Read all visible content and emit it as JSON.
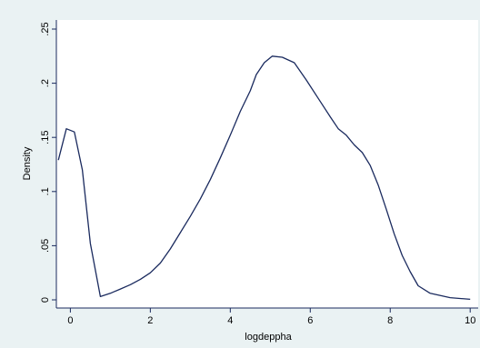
{
  "chart_data": {
    "type": "line",
    "title": "",
    "xlabel": "logdeppha",
    "ylabel": "Density",
    "xlim": [
      -0.35,
      10.2
    ],
    "ylim": [
      0,
      0.25
    ],
    "x_ticks": [
      0,
      2,
      4,
      6,
      8,
      10
    ],
    "x_tick_labels": [
      "0",
      "2",
      "4",
      "6",
      "8",
      "10"
    ],
    "y_ticks": [
      0,
      0.05,
      0.1,
      0.15,
      0.2,
      0.25
    ],
    "y_tick_labels": [
      "0",
      ".05",
      ".1",
      ".15",
      ".2",
      ".25"
    ],
    "grid": false,
    "colors": {
      "line": "#1a2a5e",
      "plot_bg": "#ffffff",
      "page_bg": "#eaf2f3"
    },
    "series": [
      {
        "x": [
          -0.3,
          -0.1,
          0.1,
          0.3,
          0.5,
          0.75,
          1.0,
          1.25,
          1.5,
          1.75,
          2.0,
          2.25,
          2.5,
          2.75,
          3.0,
          3.25,
          3.5,
          3.75,
          4.0,
          4.25,
          4.5,
          4.65,
          4.85,
          5.05,
          5.3,
          5.6,
          5.9,
          6.2,
          6.5,
          6.7,
          6.9,
          7.1,
          7.3,
          7.5,
          7.7,
          7.9,
          8.1,
          8.3,
          8.5,
          8.7,
          9.0,
          9.5,
          10.0
        ],
        "y": [
          0.129,
          0.158,
          0.155,
          0.12,
          0.052,
          0.003,
          0.006,
          0.01,
          0.014,
          0.019,
          0.025,
          0.034,
          0.047,
          0.062,
          0.077,
          0.093,
          0.111,
          0.131,
          0.152,
          0.174,
          0.193,
          0.208,
          0.219,
          0.225,
          0.224,
          0.219,
          0.203,
          0.186,
          0.169,
          0.158,
          0.152,
          0.143,
          0.136,
          0.124,
          0.106,
          0.084,
          0.061,
          0.041,
          0.026,
          0.013,
          0.006,
          0.002,
          0.0005
        ]
      }
    ]
  }
}
